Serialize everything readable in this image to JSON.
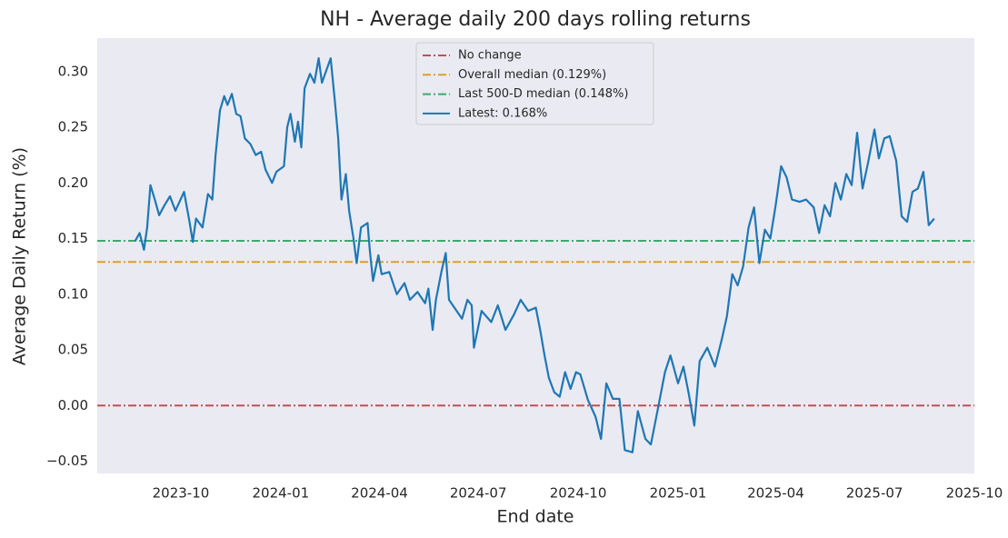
{
  "chart_data": {
    "type": "line",
    "title": "NH - Average daily 200 days rolling returns",
    "x_label": "End date",
    "y_label": "Average Daily Return (%)",
    "xlim": [
      "2023-07-16",
      "2025-10-01"
    ],
    "xticks": [
      "2023-10",
      "2024-01",
      "2024-04",
      "2024-07",
      "2024-10",
      "2025-01",
      "2025-04",
      "2025-07",
      "2025-10"
    ],
    "ylim": [
      -0.061,
      0.33
    ],
    "yticks": [
      {
        "value": -0.05,
        "label": "−0.05"
      },
      {
        "value": 0,
        "label": "0.00"
      },
      0.05,
      {
        "value": 0.1,
        "label": "0.10"
      },
      0.15,
      {
        "value": 0.2,
        "label": "0.20"
      },
      0.25,
      {
        "value": 0.3,
        "label": "0.30"
      }
    ],
    "grid": false,
    "legend": "upper center",
    "reference_lines": [
      {
        "name": "No change",
        "value": 0,
        "color": "#c44e52"
      },
      {
        "name": "Overall median (0.129%)",
        "value": 0.129,
        "color": "#dd9f2a"
      },
      {
        "name": "Last 500-D median (0.148%)",
        "value": 0.148,
        "color": "#3aab6c"
      }
    ],
    "x": [
      "2023-08-20",
      "2023-08-24",
      "2023-08-28",
      "2023-08-31",
      "2023-09-03",
      "2023-09-07",
      "2023-09-11",
      "2023-09-16",
      "2023-09-21",
      "2023-09-26",
      "2023-10-04",
      "2023-10-09",
      "2023-10-12",
      "2023-10-15",
      "2023-10-21",
      "2023-10-26",
      "2023-10-30",
      "2023-11-02",
      "2023-11-06",
      "2023-11-10",
      "2023-11-13",
      "2023-11-17",
      "2023-11-21",
      "2023-11-25",
      "2023-11-29",
      "2023-12-04",
      "2023-12-09",
      "2023-12-14",
      "2023-12-18",
      "2023-12-24",
      "2023-12-28",
      "2024-01-04",
      "2024-01-07",
      "2024-01-10",
      "2024-01-14",
      "2024-01-17",
      "2024-01-20",
      "2024-01-23",
      "2024-01-28",
      "2024-02-01",
      "2024-02-05",
      "2024-02-08",
      "2024-02-16",
      "2024-02-20",
      "2024-02-23",
      "2024-02-26",
      "2024-03-01",
      "2024-03-04",
      "2024-03-08",
      "2024-03-11",
      "2024-03-15",
      "2024-03-21",
      "2024-03-23",
      "2024-03-26",
      "2024-03-31",
      "2024-04-03",
      "2024-04-10",
      "2024-04-17",
      "2024-04-24",
      "2024-04-29",
      "2024-05-06",
      "2024-05-13",
      "2024-05-16",
      "2024-05-20",
      "2024-05-23",
      "2024-05-28",
      "2024-06-01",
      "2024-06-04",
      "2024-06-09",
      "2024-06-16",
      "2024-06-21",
      "2024-06-25",
      "2024-06-27",
      "2024-07-04",
      "2024-07-13",
      "2024-07-19",
      "2024-07-26",
      "2024-08-03",
      "2024-08-09",
      "2024-08-16",
      "2024-08-23",
      "2024-08-27",
      "2024-08-31",
      "2024-09-04",
      "2024-09-09",
      "2024-09-14",
      "2024-09-19",
      "2024-09-24",
      "2024-09-29",
      "2024-10-03",
      "2024-10-10",
      "2024-10-17",
      "2024-10-22",
      "2024-10-27",
      "2024-11-02",
      "2024-11-08",
      "2024-11-13",
      "2024-11-20",
      "2024-11-25",
      "2024-12-02",
      "2024-12-07",
      "2024-12-14",
      "2024-12-20",
      "2024-12-25",
      "2025-01-01",
      "2025-01-06",
      "2025-01-11",
      "2025-01-16",
      "2025-01-21",
      "2025-01-28",
      "2025-02-04",
      "2025-02-10",
      "2025-02-15",
      "2025-02-20",
      "2025-02-25",
      "2025-03-02",
      "2025-03-07",
      "2025-03-12",
      "2025-03-17",
      "2025-03-22",
      "2025-03-27",
      "2025-04-01",
      "2025-04-06",
      "2025-04-11",
      "2025-04-16",
      "2025-04-23",
      "2025-04-29",
      "2025-05-06",
      "2025-05-11",
      "2025-05-16",
      "2025-05-21",
      "2025-05-26",
      "2025-05-31",
      "2025-06-05",
      "2025-06-10",
      "2025-06-15",
      "2025-06-20",
      "2025-06-25",
      "2025-07-01",
      "2025-07-05",
      "2025-07-10",
      "2025-07-15",
      "2025-07-21",
      "2025-07-26",
      "2025-07-31",
      "2025-08-05",
      "2025-08-10",
      "2025-08-15",
      "2025-08-20",
      "2025-08-25"
    ],
    "series": [
      {
        "name": "Latest: 0.168%",
        "color": "#1f77b4",
        "values": [
          0.148,
          0.155,
          0.14,
          0.16,
          0.198,
          0.185,
          0.171,
          0.18,
          0.188,
          0.175,
          0.192,
          0.165,
          0.147,
          0.168,
          0.16,
          0.19,
          0.185,
          0.225,
          0.265,
          0.278,
          0.27,
          0.28,
          0.262,
          0.26,
          0.24,
          0.235,
          0.225,
          0.228,
          0.212,
          0.2,
          0.21,
          0.215,
          0.25,
          0.262,
          0.237,
          0.255,
          0.232,
          0.285,
          0.298,
          0.29,
          0.312,
          0.29,
          0.312,
          0.272,
          0.24,
          0.185,
          0.208,
          0.175,
          0.15,
          0.128,
          0.16,
          0.164,
          0.14,
          0.112,
          0.135,
          0.118,
          0.12,
          0.1,
          0.11,
          0.095,
          0.102,
          0.092,
          0.105,
          0.068,
          0.095,
          0.12,
          0.137,
          0.095,
          0.088,
          0.078,
          0.095,
          0.09,
          0.052,
          0.085,
          0.075,
          0.09,
          0.068,
          0.082,
          0.095,
          0.085,
          0.088,
          0.068,
          0.045,
          0.025,
          0.012,
          0.008,
          0.03,
          0.015,
          0.03,
          0.028,
          0.005,
          -0.01,
          -0.03,
          0.02,
          0.006,
          0.006,
          -0.04,
          -0.042,
          -0.005,
          -0.03,
          -0.035,
          0,
          0.03,
          0.045,
          0.02,
          0.035,
          0.01,
          -0.018,
          0.04,
          0.052,
          0.035,
          0.058,
          0.08,
          0.118,
          0.108,
          0.125,
          0.16,
          0.178,
          0.128,
          0.158,
          0.15,
          0.18,
          0.215,
          0.205,
          0.185,
          0.183,
          0.185,
          0.178,
          0.155,
          0.18,
          0.17,
          0.2,
          0.185,
          0.208,
          0.198,
          0.245,
          0.195,
          0.218,
          0.248,
          0.222,
          0.24,
          0.242,
          0.22,
          0.17,
          0.165,
          0.192,
          0.195,
          0.21,
          0.162,
          0.168
        ]
      }
    ]
  }
}
